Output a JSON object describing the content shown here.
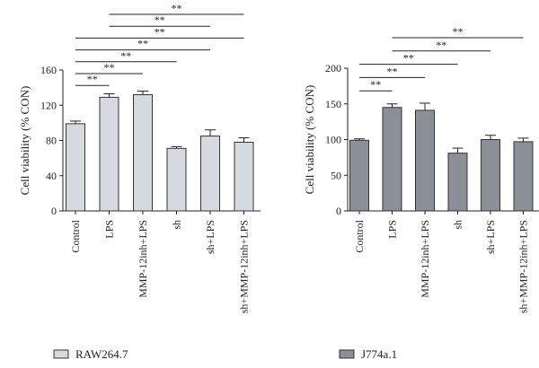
{
  "chart_data": [
    {
      "type": "bar",
      "ylabel": "Cell viability (% CON)",
      "ylim": [
        0,
        160
      ],
      "yticks": [
        0,
        40,
        80,
        120,
        160
      ],
      "categories": [
        "Control",
        "LPS",
        "MMP-12inh+LPS",
        "sh",
        "sh+LPS",
        "sh+MMP-12inh+LPS"
      ],
      "series": [
        {
          "name": "RAW264.7",
          "color": "#d6d9e0",
          "values": [
            99,
            129,
            132,
            71,
            85,
            78
          ],
          "errors": [
            3,
            4,
            4,
            2,
            7,
            5
          ]
        }
      ],
      "legend": "bottom-left",
      "significance": [
        {
          "from": "Control",
          "to": "LPS",
          "label": "**"
        },
        {
          "from": "Control",
          "to": "MMP-12inh+LPS",
          "label": "**"
        },
        {
          "from": "Control",
          "to": "sh",
          "label": "**"
        },
        {
          "from": "Control",
          "to": "sh+LPS",
          "label": "**"
        },
        {
          "from": "Control",
          "to": "sh+MMP-12inh+LPS",
          "label": "**"
        },
        {
          "from": "LPS",
          "to": "sh+LPS",
          "label": "**"
        },
        {
          "from": "LPS",
          "to": "sh+MMP-12inh+LPS",
          "label": "**"
        }
      ]
    },
    {
      "type": "bar",
      "ylabel": "Cell viability (% CON)",
      "ylim": [
        0,
        200
      ],
      "yticks": [
        0,
        50,
        100,
        150,
        200
      ],
      "categories": [
        "Control",
        "LPS",
        "MMP-12inh+LPS",
        "sh",
        "sh+LPS",
        "sh+MMP-12inh+LPS"
      ],
      "series": [
        {
          "name": "J774a.1",
          "color": "#8a8f98",
          "values": [
            99,
            145,
            141,
            81,
            100,
            97
          ],
          "errors": [
            2,
            5,
            10,
            7,
            6,
            5
          ]
        }
      ],
      "legend": "bottom-left",
      "significance": [
        {
          "from": "Control",
          "to": "LPS",
          "label": "**"
        },
        {
          "from": "Control",
          "to": "MMP-12inh+LPS",
          "label": "**"
        },
        {
          "from": "Control",
          "to": "sh",
          "label": "**"
        },
        {
          "from": "LPS",
          "to": "sh+LPS",
          "label": "**"
        },
        {
          "from": "LPS",
          "to": "sh+MMP-12inh+LPS",
          "label": "**"
        }
      ]
    }
  ]
}
